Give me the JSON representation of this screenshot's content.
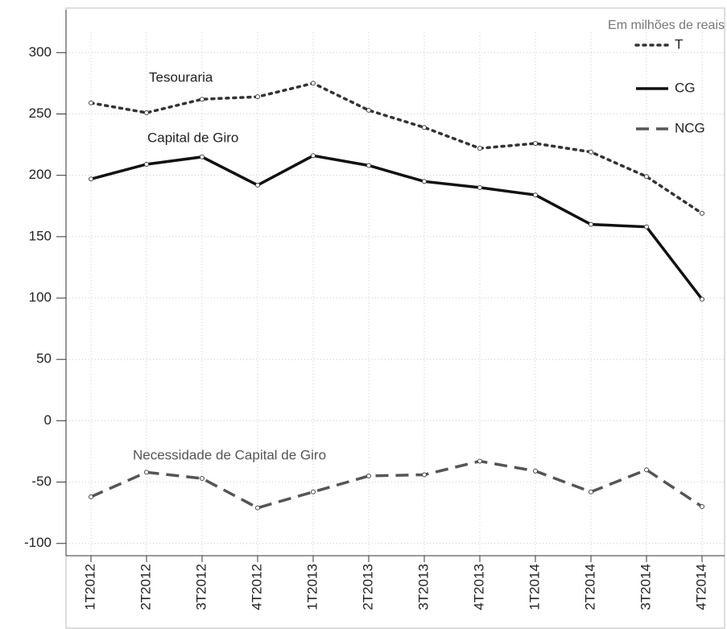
{
  "chart_data": {
    "type": "line",
    "subtitle": "Em milhões de reais",
    "categories": [
      "1T2012",
      "2T2012",
      "3T2012",
      "4T2012",
      "1T2013",
      "2T2013",
      "3T2013",
      "4T2013",
      "1T2014",
      "2T2014",
      "3T2014",
      "4T2014"
    ],
    "series": [
      {
        "name": "T",
        "color": "#333333",
        "line_style": "dotted",
        "label": "Tesouraria",
        "values": [
          259,
          251,
          262,
          264,
          275,
          253,
          239,
          222,
          226,
          219,
          199,
          169
        ]
      },
      {
        "name": "CG",
        "color": "#111111",
        "line_style": "solid",
        "label": "Capital de Giro",
        "values": [
          197,
          209,
          215,
          192,
          216,
          208,
          195,
          190,
          184,
          160,
          158,
          99
        ]
      },
      {
        "name": "NCG",
        "color": "#555555",
        "line_style": "dashed",
        "label": "Necessidade de Capital de Giro",
        "values": [
          -62,
          -42,
          -47,
          -71,
          -58,
          -45,
          -44,
          -33,
          -41,
          -58,
          -40,
          -70
        ]
      }
    ],
    "ylim": [
      -110,
      335
    ],
    "yticks": [
      -100,
      -50,
      0,
      50,
      100,
      150,
      200,
      250,
      300
    ],
    "grid": true
  }
}
